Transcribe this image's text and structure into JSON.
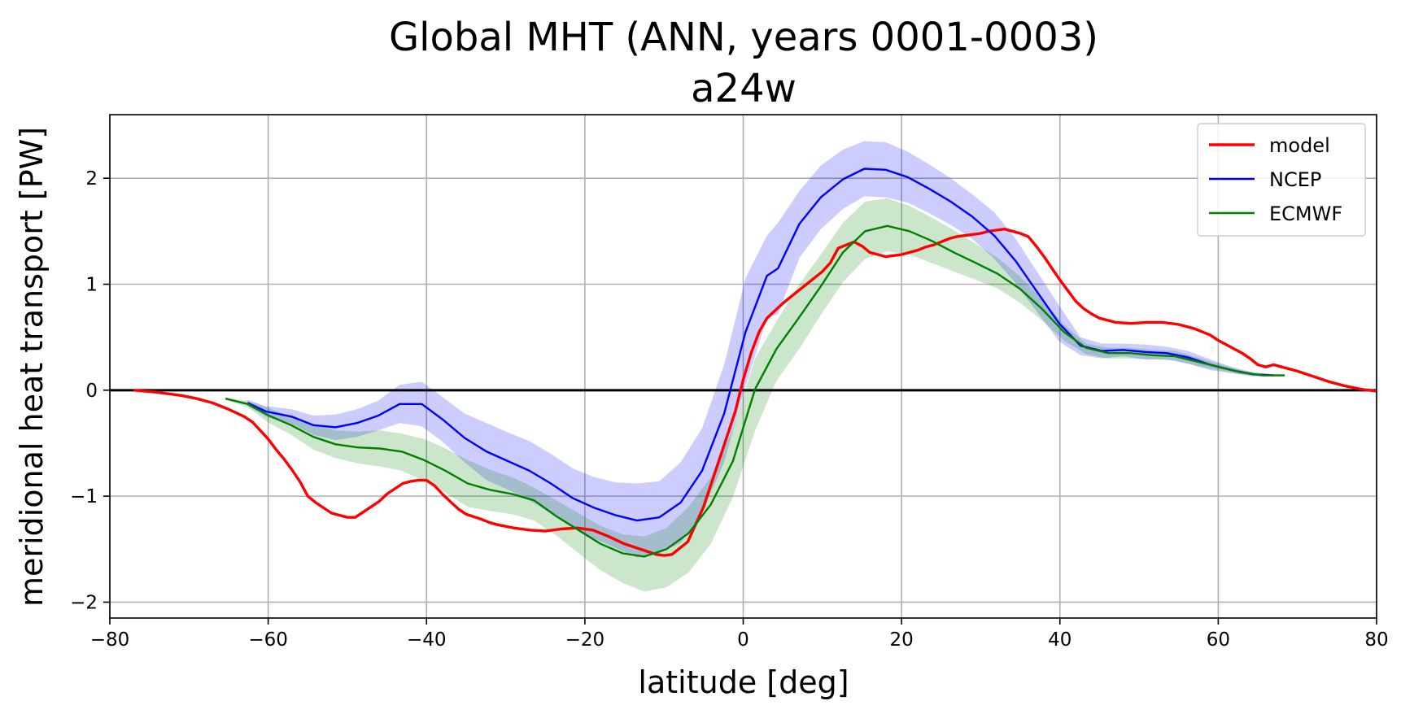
{
  "chart_data": {
    "type": "line",
    "title": "Global MHT (ANN, years 0001-0003)",
    "subtitle": "a24w",
    "xlabel": "latitude [deg]",
    "ylabel": "meridional heat transport [PW]",
    "xlim": [
      -80,
      80
    ],
    "ylim": [
      -2.15,
      2.6
    ],
    "xticks": [
      -80,
      -60,
      -40,
      -20,
      0,
      20,
      40,
      60,
      80
    ],
    "xtick_labels": [
      "−80",
      "−60",
      "−40",
      "−20",
      "0",
      "20",
      "40",
      "60",
      "80"
    ],
    "yticks": [
      -2,
      -1,
      0,
      1,
      2
    ],
    "ytick_labels": [
      "−2",
      "−1",
      "0",
      "1",
      "2"
    ],
    "grid": true,
    "legend_position": "top-right",
    "zero_line": true,
    "series": [
      {
        "name": "model",
        "color": "#ff0000",
        "x": [
          -77,
          -74,
          -71,
          -69,
          -67,
          -65,
          -63,
          -62,
          -61,
          -60,
          -59,
          -58,
          -57,
          -56,
          -55,
          -54,
          -52,
          -50,
          -49,
          -48,
          -46,
          -45,
          -44,
          -43,
          -42,
          -41,
          -40,
          -39,
          -38,
          -37,
          -36,
          -35,
          -33,
          -32,
          -31,
          -29,
          -27,
          -25,
          -23,
          -21,
          -19,
          -17,
          -15,
          -13,
          -11,
          -10,
          -9,
          -7,
          -5,
          -3,
          -1,
          0,
          1,
          2,
          3,
          4,
          5,
          6,
          7,
          8,
          9,
          10,
          11,
          12,
          13,
          14,
          15,
          16,
          17,
          18,
          19,
          20,
          21,
          22,
          23,
          24,
          25,
          26,
          27,
          28,
          29,
          30,
          31,
          32,
          33,
          34,
          35,
          36,
          37,
          38,
          39,
          40,
          41,
          42,
          43,
          44,
          45,
          47,
          49,
          51,
          53,
          55,
          57,
          59,
          60,
          61,
          62,
          63,
          64,
          65,
          66,
          67,
          68,
          70,
          72,
          74,
          76,
          78,
          80
        ],
        "y": [
          0.0,
          -0.02,
          -0.05,
          -0.08,
          -0.12,
          -0.18,
          -0.25,
          -0.3,
          -0.38,
          -0.46,
          -0.56,
          -0.65,
          -0.75,
          -0.86,
          -1.0,
          -1.06,
          -1.16,
          -1.2,
          -1.2,
          -1.15,
          -1.05,
          -0.98,
          -0.93,
          -0.88,
          -0.86,
          -0.85,
          -0.85,
          -0.9,
          -0.98,
          -1.05,
          -1.12,
          -1.17,
          -1.22,
          -1.25,
          -1.27,
          -1.3,
          -1.32,
          -1.33,
          -1.31,
          -1.3,
          -1.32,
          -1.38,
          -1.45,
          -1.5,
          -1.55,
          -1.56,
          -1.55,
          -1.43,
          -1.1,
          -0.65,
          -0.2,
          0.1,
          0.35,
          0.55,
          0.68,
          0.75,
          0.82,
          0.88,
          0.94,
          1.0,
          1.06,
          1.12,
          1.2,
          1.34,
          1.37,
          1.4,
          1.36,
          1.3,
          1.28,
          1.26,
          1.27,
          1.28,
          1.3,
          1.32,
          1.35,
          1.37,
          1.4,
          1.43,
          1.45,
          1.46,
          1.47,
          1.48,
          1.5,
          1.51,
          1.52,
          1.5,
          1.48,
          1.45,
          1.36,
          1.26,
          1.15,
          1.04,
          0.94,
          0.84,
          0.77,
          0.72,
          0.68,
          0.64,
          0.63,
          0.64,
          0.64,
          0.62,
          0.58,
          0.52,
          0.47,
          0.43,
          0.39,
          0.35,
          0.3,
          0.24,
          0.22,
          0.24,
          0.22,
          0.18,
          0.13,
          0.08,
          0.04,
          0.01,
          -0.01
        ]
      },
      {
        "name": "NCEP",
        "color": "#0000ff",
        "x": [
          -62.6,
          -60.3,
          -57,
          -54.3,
          -51.5,
          -48.8,
          -46.1,
          -43.4,
          -40.6,
          -37.9,
          -35.2,
          -32.4,
          -29.7,
          -27,
          -24.3,
          -21.5,
          -18.8,
          -16.1,
          -13.4,
          -10.6,
          -7.9,
          -5.2,
          -2.4,
          0.3,
          3,
          4.4,
          7.1,
          9.8,
          12.6,
          15.3,
          18,
          20.8,
          23.5,
          26.2,
          28.9,
          31.7,
          34.4,
          37.1,
          39.9,
          42.6,
          45.3,
          48,
          50.8,
          53.5,
          56.2,
          59,
          61.7,
          64.4,
          67.1
        ],
        "y": [
          -0.12,
          -0.2,
          -0.25,
          -0.33,
          -0.35,
          -0.31,
          -0.24,
          -0.13,
          -0.13,
          -0.28,
          -0.45,
          -0.58,
          -0.67,
          -0.76,
          -0.88,
          -1.02,
          -1.11,
          -1.18,
          -1.23,
          -1.2,
          -1.06,
          -0.76,
          -0.22,
          0.55,
          1.08,
          1.15,
          1.57,
          1.82,
          1.99,
          2.09,
          2.08,
          2.01,
          1.9,
          1.78,
          1.64,
          1.46,
          1.22,
          0.93,
          0.63,
          0.42,
          0.37,
          0.38,
          0.36,
          0.35,
          0.31,
          0.24,
          0.19,
          0.15,
          0.14
        ],
        "band_upper": [
          -0.09,
          -0.15,
          -0.18,
          -0.24,
          -0.23,
          -0.18,
          -0.1,
          0.05,
          0.08,
          -0.07,
          -0.22,
          -0.31,
          -0.4,
          -0.48,
          -0.6,
          -0.74,
          -0.82,
          -0.87,
          -0.88,
          -0.86,
          -0.68,
          -0.36,
          0.24,
          1.06,
          1.46,
          1.58,
          1.88,
          2.12,
          2.27,
          2.35,
          2.34,
          2.25,
          2.13,
          2.0,
          1.85,
          1.68,
          1.43,
          1.12,
          0.8,
          0.5,
          0.44,
          0.44,
          0.43,
          0.41,
          0.37,
          0.29,
          0.22,
          0.17,
          0.15
        ],
        "band_lower": [
          -0.15,
          -0.25,
          -0.32,
          -0.42,
          -0.47,
          -0.44,
          -0.38,
          -0.31,
          -0.34,
          -0.49,
          -0.68,
          -0.85,
          -0.94,
          -1.04,
          -1.16,
          -1.3,
          -1.4,
          -1.49,
          -1.58,
          -1.54,
          -1.44,
          -1.16,
          -0.68,
          0.04,
          0.68,
          0.72,
          1.25,
          1.52,
          1.71,
          1.83,
          1.82,
          1.77,
          1.67,
          1.56,
          1.43,
          1.24,
          1.01,
          0.74,
          0.46,
          0.33,
          0.3,
          0.32,
          0.29,
          0.29,
          0.25,
          0.19,
          0.16,
          0.13,
          0.13
        ]
      },
      {
        "name": "ECMWF",
        "color": "#008000",
        "x": [
          -65.4,
          -62.6,
          -59.9,
          -57.1,
          -54.3,
          -51.5,
          -48.7,
          -45.9,
          -43.1,
          -40.3,
          -37.6,
          -34.8,
          -32,
          -29.2,
          -26.4,
          -23.6,
          -20.8,
          -18,
          -15.2,
          -12.5,
          -9.7,
          -6.9,
          -4.1,
          -1.3,
          1.5,
          4.2,
          7,
          9.8,
          12.6,
          15.4,
          18.2,
          21,
          23.8,
          26.6,
          29.4,
          32.1,
          34.9,
          37.7,
          40.5,
          43.3,
          46.1,
          48.9,
          51.7,
          54.5,
          57.3,
          60,
          62.8,
          65.6,
          68.4
        ],
        "y": [
          -0.08,
          -0.13,
          -0.24,
          -0.33,
          -0.44,
          -0.51,
          -0.54,
          -0.55,
          -0.58,
          -0.66,
          -0.76,
          -0.88,
          -0.94,
          -0.98,
          -1.04,
          -1.19,
          -1.32,
          -1.45,
          -1.54,
          -1.57,
          -1.5,
          -1.35,
          -1.08,
          -0.67,
          0.01,
          0.39,
          0.68,
          0.98,
          1.3,
          1.5,
          1.55,
          1.5,
          1.41,
          1.3,
          1.2,
          1.1,
          0.96,
          0.77,
          0.55,
          0.4,
          0.35,
          0.35,
          0.33,
          0.32,
          0.27,
          0.22,
          0.17,
          0.14,
          0.14
        ],
        "band_upper": [
          -0.07,
          -0.1,
          -0.17,
          -0.25,
          -0.32,
          -0.38,
          -0.39,
          -0.38,
          -0.41,
          -0.46,
          -0.55,
          -0.66,
          -0.75,
          -0.82,
          -0.92,
          -1.04,
          -1.16,
          -1.28,
          -1.36,
          -1.38,
          -1.3,
          -1.1,
          -0.82,
          -0.37,
          0.3,
          0.65,
          0.99,
          1.28,
          1.58,
          1.78,
          1.81,
          1.74,
          1.63,
          1.51,
          1.38,
          1.25,
          1.08,
          0.86,
          0.62,
          0.44,
          0.4,
          0.4,
          0.38,
          0.37,
          0.31,
          0.25,
          0.19,
          0.15,
          0.15
        ],
        "band_lower": [
          -0.09,
          -0.16,
          -0.31,
          -0.42,
          -0.56,
          -0.64,
          -0.69,
          -0.72,
          -0.76,
          -0.86,
          -0.97,
          -1.1,
          -1.14,
          -1.17,
          -1.23,
          -1.37,
          -1.54,
          -1.7,
          -1.82,
          -1.9,
          -1.86,
          -1.72,
          -1.45,
          -1.01,
          -0.38,
          0.09,
          0.38,
          0.71,
          1.02,
          1.24,
          1.31,
          1.28,
          1.2,
          1.12,
          1.04,
          0.96,
          0.83,
          0.66,
          0.47,
          0.34,
          0.3,
          0.3,
          0.29,
          0.28,
          0.23,
          0.19,
          0.15,
          0.13,
          0.13
        ]
      }
    ]
  }
}
